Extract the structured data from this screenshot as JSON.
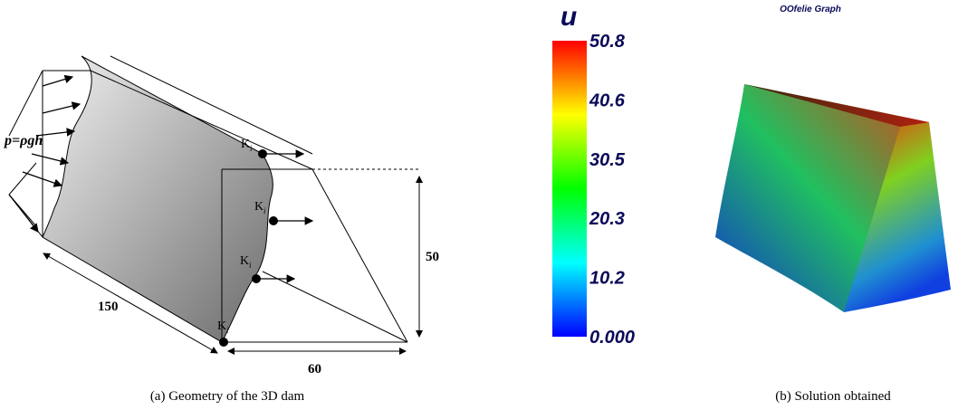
{
  "panel_a": {
    "pressure_label": "p=ρgh",
    "points": [
      {
        "label": "K",
        "subscript": "i"
      },
      {
        "label": "K",
        "subscript": "i"
      },
      {
        "label": "K",
        "subscript": "i"
      },
      {
        "label": "K",
        "subscript": "i"
      }
    ],
    "dimensions": {
      "length": "150",
      "height": "50",
      "base": "60"
    },
    "caption": "(a) Geometry of the 3D dam"
  },
  "panel_b": {
    "software": "OOfelie Graph",
    "colorbar_title": "u",
    "colorbar_ticks": [
      "50.8",
      "40.6",
      "30.5",
      "20.3",
      "10.2",
      "0.000"
    ],
    "caption": "(b) Solution obtained"
  }
}
